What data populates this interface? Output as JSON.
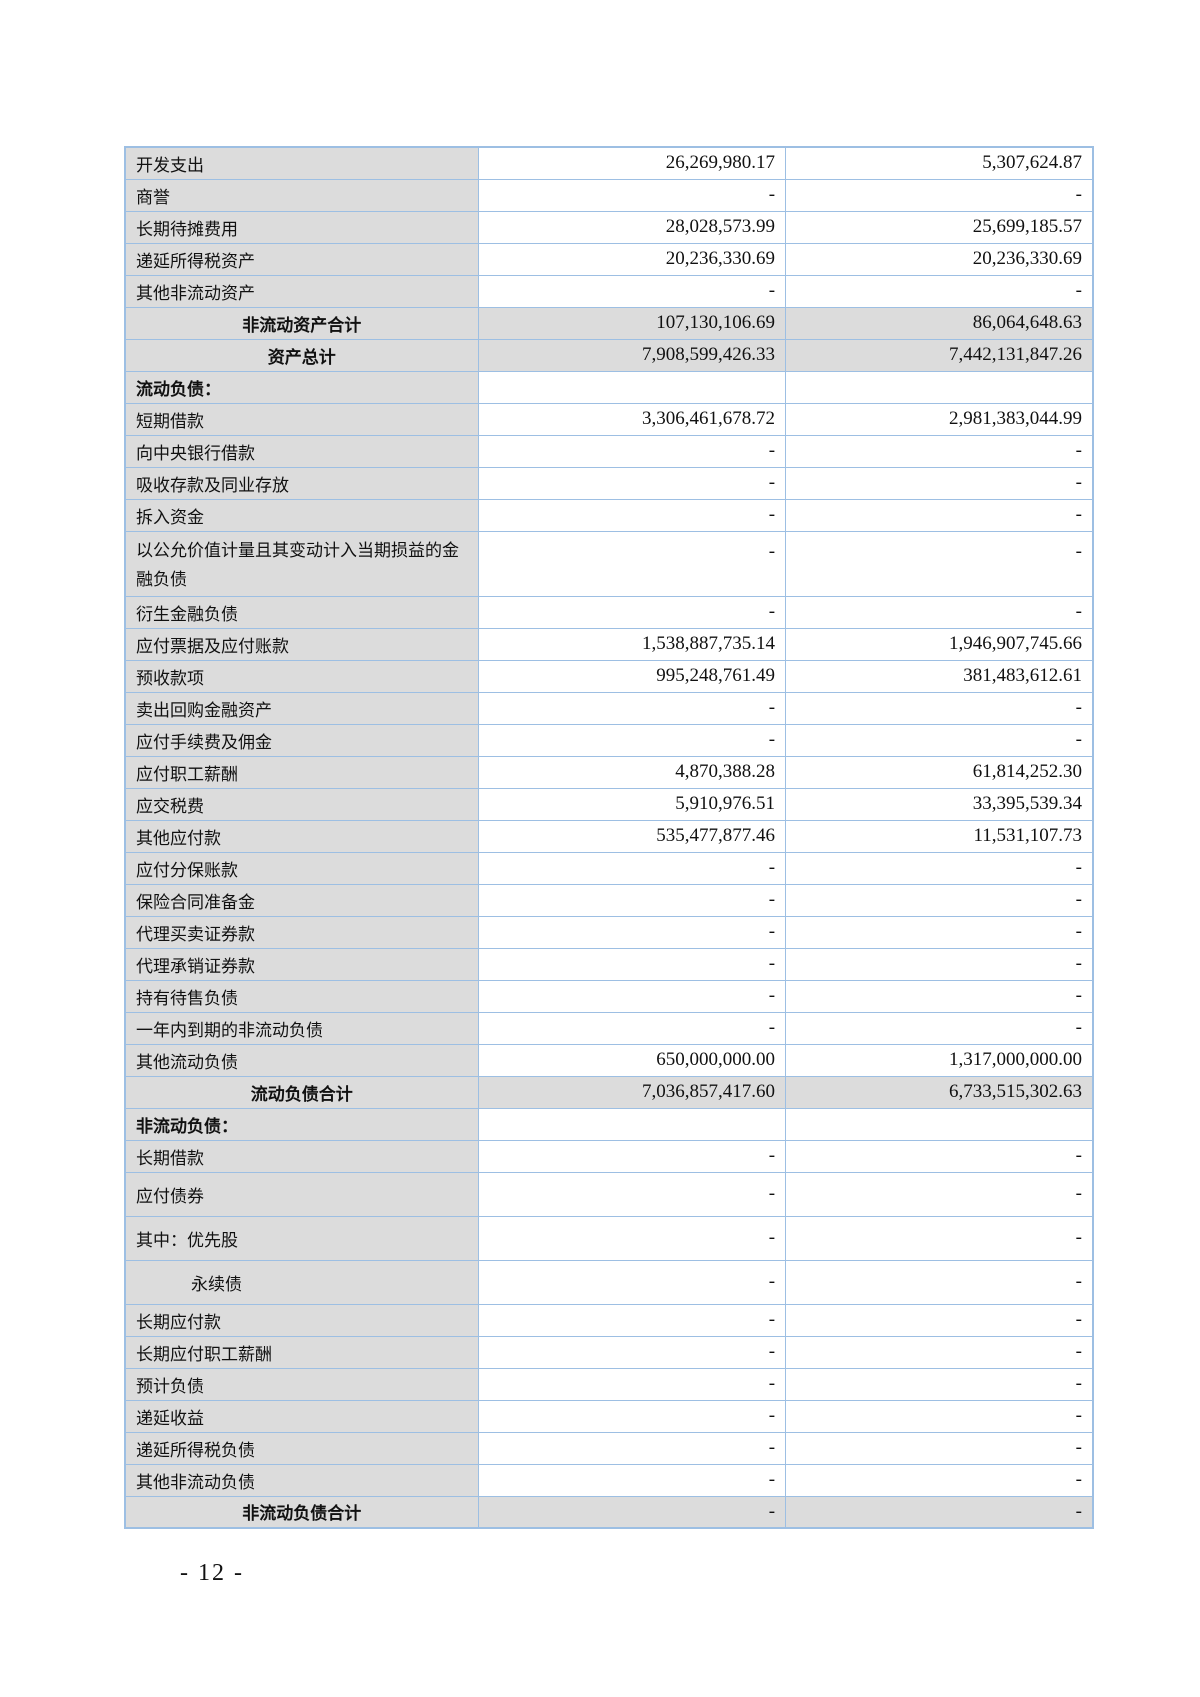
{
  "rows": [
    {
      "label": "开发支出",
      "current": "26,269,980.17",
      "previous": "5,307,624.87"
    },
    {
      "label": "商誉",
      "current": "-",
      "previous": "-"
    },
    {
      "label": "长期待摊费用",
      "current": "28,028,573.99",
      "previous": "25,699,185.57"
    },
    {
      "label": "递延所得税资产",
      "current": "20,236,330.69",
      "previous": "20,236,330.69"
    },
    {
      "label": "其他非流动资产",
      "current": "-",
      "previous": "-"
    },
    {
      "label": "非流动资产合计",
      "current": "107,130,106.69",
      "previous": "86,064,648.63",
      "type": "total"
    },
    {
      "label": "资产总计",
      "current": "7,908,599,426.33",
      "previous": "7,442,131,847.26",
      "type": "total"
    },
    {
      "label": "流动负债：",
      "current": "",
      "previous": "",
      "type": "section"
    },
    {
      "label": "短期借款",
      "current": "3,306,461,678.72",
      "previous": "2,981,383,044.99"
    },
    {
      "label": "向中央银行借款",
      "current": "-",
      "previous": "-"
    },
    {
      "label": "吸收存款及同业存放",
      "current": "-",
      "previous": "-"
    },
    {
      "label": "拆入资金",
      "current": "-",
      "previous": "-"
    },
    {
      "label": "以公允价值计量且其变动计入当期损益的金融负债",
      "current": "-",
      "previous": "-",
      "type": "double"
    },
    {
      "label": "衍生金融负债",
      "current": "-",
      "previous": "-"
    },
    {
      "label": "应付票据及应付账款",
      "current": "1,538,887,735.14",
      "previous": "1,946,907,745.66"
    },
    {
      "label": "预收款项",
      "current": "995,248,761.49",
      "previous": "381,483,612.61"
    },
    {
      "label": "卖出回购金融资产",
      "current": "-",
      "previous": "-"
    },
    {
      "label": "应付手续费及佣金",
      "current": "-",
      "previous": "-"
    },
    {
      "label": "应付职工薪酬",
      "current": "4,870,388.28",
      "previous": "61,814,252.30"
    },
    {
      "label": "应交税费",
      "current": "5,910,976.51",
      "previous": "33,395,539.34"
    },
    {
      "label": "其他应付款",
      "current": "535,477,877.46",
      "previous": "11,531,107.73"
    },
    {
      "label": "应付分保账款",
      "current": "-",
      "previous": "-"
    },
    {
      "label": "保险合同准备金",
      "current": "-",
      "previous": "-"
    },
    {
      "label": "代理买卖证券款",
      "current": "-",
      "previous": "-"
    },
    {
      "label": "代理承销证券款",
      "current": "-",
      "previous": "-"
    },
    {
      "label": "持有待售负债",
      "current": "-",
      "previous": "-"
    },
    {
      "label": "一年内到期的非流动负债",
      "current": "-",
      "previous": "-"
    },
    {
      "label": "其他流动负债",
      "current": "650,000,000.00",
      "previous": "1,317,000,000.00"
    },
    {
      "label": "流动负债合计",
      "current": "7,036,857,417.60",
      "previous": "6,733,515,302.63",
      "type": "total"
    },
    {
      "label": "非流动负债：",
      "current": "",
      "previous": "",
      "type": "section"
    },
    {
      "label": "长期借款",
      "current": "-",
      "previous": "-"
    },
    {
      "label": "应付债券",
      "current": "-",
      "previous": "-",
      "type": "tall"
    },
    {
      "label": "其中：优先股",
      "current": "-",
      "previous": "-",
      "type": "tall"
    },
    {
      "label": "永续债",
      "current": "-",
      "previous": "-",
      "type": "tall indent"
    },
    {
      "label": "长期应付款",
      "current": "-",
      "previous": "-"
    },
    {
      "label": "长期应付职工薪酬",
      "current": "-",
      "previous": "-"
    },
    {
      "label": "预计负债",
      "current": "-",
      "previous": "-"
    },
    {
      "label": "递延收益",
      "current": "-",
      "previous": "-"
    },
    {
      "label": "递延所得税负债",
      "current": "-",
      "previous": "-"
    },
    {
      "label": "其他非流动负债",
      "current": "-",
      "previous": "-"
    },
    {
      "label": "非流动负债合计",
      "current": "-",
      "previous": "-",
      "type": "total"
    }
  ],
  "page_number": "- 12 -"
}
